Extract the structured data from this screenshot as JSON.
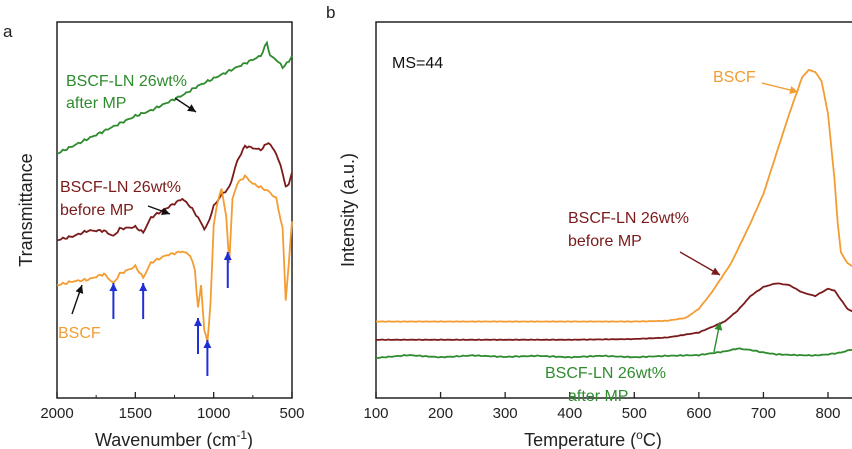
{
  "panels": {
    "a": {
      "letter": "a"
    },
    "b": {
      "letter": "b"
    }
  },
  "colors": {
    "green": "#2e8b2e",
    "darkred": "#7b1a1a",
    "orange": "#f39c32",
    "blue": "#1f2fd6",
    "black": "#111111"
  },
  "chart_data": [
    {
      "type": "line",
      "panel": "a",
      "xlabel_main": "Wavenumber (cm",
      "xlabel_sup": "-1",
      "xlabel_end": ")",
      "ylabel": "Transmittance",
      "xlim": [
        2000,
        500
      ],
      "x_reversed": true,
      "ylim": [
        0,
        10
      ],
      "y_ticks_shown": false,
      "xticks": [
        "2000",
        "1500",
        "1000",
        "500"
      ],
      "xtick_values": [
        2000,
        1500,
        1000,
        500
      ],
      "annotations": {
        "green_line1": "BSCF-LN 26wt%",
        "green_line2": "after MP",
        "red_line1": "BSCF-LN 26wt%",
        "red_line2": "before MP",
        "orange": "BSCF"
      },
      "blue_arrow_wavenumbers": [
        1640,
        1450,
        1100,
        1040,
        910
      ],
      "series": [
        {
          "name": "BSCF-LN 26wt% after MP",
          "color": "green",
          "x": [
            2000,
            1900,
            1800,
            1700,
            1600,
            1500,
            1400,
            1300,
            1200,
            1100,
            1000,
            900,
            800,
            750,
            700,
            660,
            640,
            600,
            560,
            520,
            500
          ],
          "y": [
            6.5,
            6.7,
            6.9,
            7.1,
            7.3,
            7.5,
            7.65,
            7.85,
            8.05,
            8.3,
            8.5,
            8.7,
            8.9,
            9.0,
            9.1,
            9.45,
            9.1,
            9.0,
            8.8,
            8.95,
            9.1
          ]
        },
        {
          "name": "BSCF-LN 26wt% before MP",
          "color": "darkred",
          "x": [
            2000,
            1900,
            1800,
            1700,
            1640,
            1600,
            1500,
            1450,
            1400,
            1300,
            1200,
            1150,
            1100,
            1060,
            1040,
            1000,
            950,
            900,
            850,
            800,
            750,
            700,
            650,
            600,
            560,
            540,
            520,
            500
          ],
          "y": [
            4.2,
            4.3,
            4.45,
            4.45,
            4.3,
            4.5,
            4.55,
            4.4,
            4.8,
            5.05,
            5.3,
            5.1,
            4.8,
            4.5,
            4.6,
            5.1,
            5.4,
            5.6,
            6.3,
            6.7,
            6.65,
            6.6,
            6.8,
            6.5,
            6.0,
            5.6,
            5.7,
            6.0
          ]
        },
        {
          "name": "BSCF",
          "color": "orange",
          "x": [
            2000,
            1900,
            1800,
            1700,
            1640,
            1600,
            1500,
            1450,
            1400,
            1300,
            1200,
            1150,
            1120,
            1100,
            1080,
            1060,
            1040,
            1020,
            1000,
            980,
            950,
            920,
            900,
            880,
            850,
            800,
            750,
            700,
            650,
            600,
            560,
            540,
            520,
            500
          ],
          "y": [
            3.0,
            3.1,
            3.15,
            3.3,
            3.05,
            3.3,
            3.5,
            3.2,
            3.6,
            3.8,
            3.9,
            3.8,
            3.4,
            2.4,
            3.0,
            1.8,
            1.5,
            2.5,
            4.6,
            5.1,
            5.6,
            4.8,
            3.6,
            5.3,
            5.7,
            5.9,
            5.7,
            5.6,
            5.5,
            5.3,
            4.5,
            2.6,
            3.6,
            4.7
          ]
        }
      ]
    },
    {
      "type": "line",
      "panel": "b",
      "xlabel_main": "Temperature (",
      "xlabel_sup": "o",
      "xlabel_end": "C)",
      "ylabel": "Intensity (a.u.)",
      "label_ms": "MS=44",
      "xlim": [
        100,
        840
      ],
      "ylim": [
        0,
        10
      ],
      "y_ticks_shown": false,
      "xticks": [
        "100",
        "200",
        "300",
        "400",
        "500",
        "600",
        "700",
        "800"
      ],
      "xtick_values": [
        100,
        200,
        300,
        400,
        500,
        600,
        700,
        800
      ],
      "annotations": {
        "orange": "BSCF",
        "red_line1": "BSCF-LN 26wt%",
        "red_line2": "before MP",
        "green_line1": "BSCF-LN 26wt%",
        "green_line2": "after MP"
      },
      "series": [
        {
          "name": "BSCF",
          "color": "orange",
          "x": [
            100,
            200,
            300,
            400,
            500,
            550,
            580,
            600,
            620,
            650,
            680,
            700,
            720,
            740,
            760,
            770,
            780,
            790,
            800,
            810,
            815,
            820,
            830,
            840
          ],
          "y": [
            3.1,
            3.1,
            3.1,
            3.1,
            3.1,
            3.12,
            3.2,
            3.45,
            3.9,
            4.7,
            5.8,
            6.6,
            7.7,
            8.8,
            9.8,
            10.0,
            9.95,
            9.7,
            8.8,
            7.0,
            5.8,
            5.0,
            4.7,
            4.6
          ]
        },
        {
          "name": "BSCF-LN 26wt% before MP",
          "color": "darkred",
          "x": [
            100,
            200,
            300,
            400,
            500,
            550,
            600,
            640,
            660,
            680,
            700,
            720,
            740,
            760,
            780,
            800,
            810,
            820,
            830,
            840
          ],
          "y": [
            2.6,
            2.6,
            2.6,
            2.6,
            2.62,
            2.66,
            2.8,
            3.1,
            3.4,
            3.8,
            4.05,
            4.15,
            4.1,
            3.9,
            3.8,
            4.0,
            3.95,
            3.7,
            3.45,
            3.35
          ]
        },
        {
          "name": "BSCF-LN 26wt% after MP",
          "color": "green",
          "x": [
            100,
            150,
            200,
            250,
            300,
            350,
            400,
            450,
            500,
            550,
            600,
            640,
            660,
            680,
            700,
            720,
            750,
            780,
            800,
            820,
            840
          ],
          "y": [
            2.1,
            2.18,
            2.12,
            2.17,
            2.13,
            2.16,
            2.12,
            2.16,
            2.12,
            2.16,
            2.18,
            2.28,
            2.36,
            2.32,
            2.25,
            2.2,
            2.18,
            2.17,
            2.2,
            2.25,
            2.35
          ]
        }
      ]
    }
  ]
}
